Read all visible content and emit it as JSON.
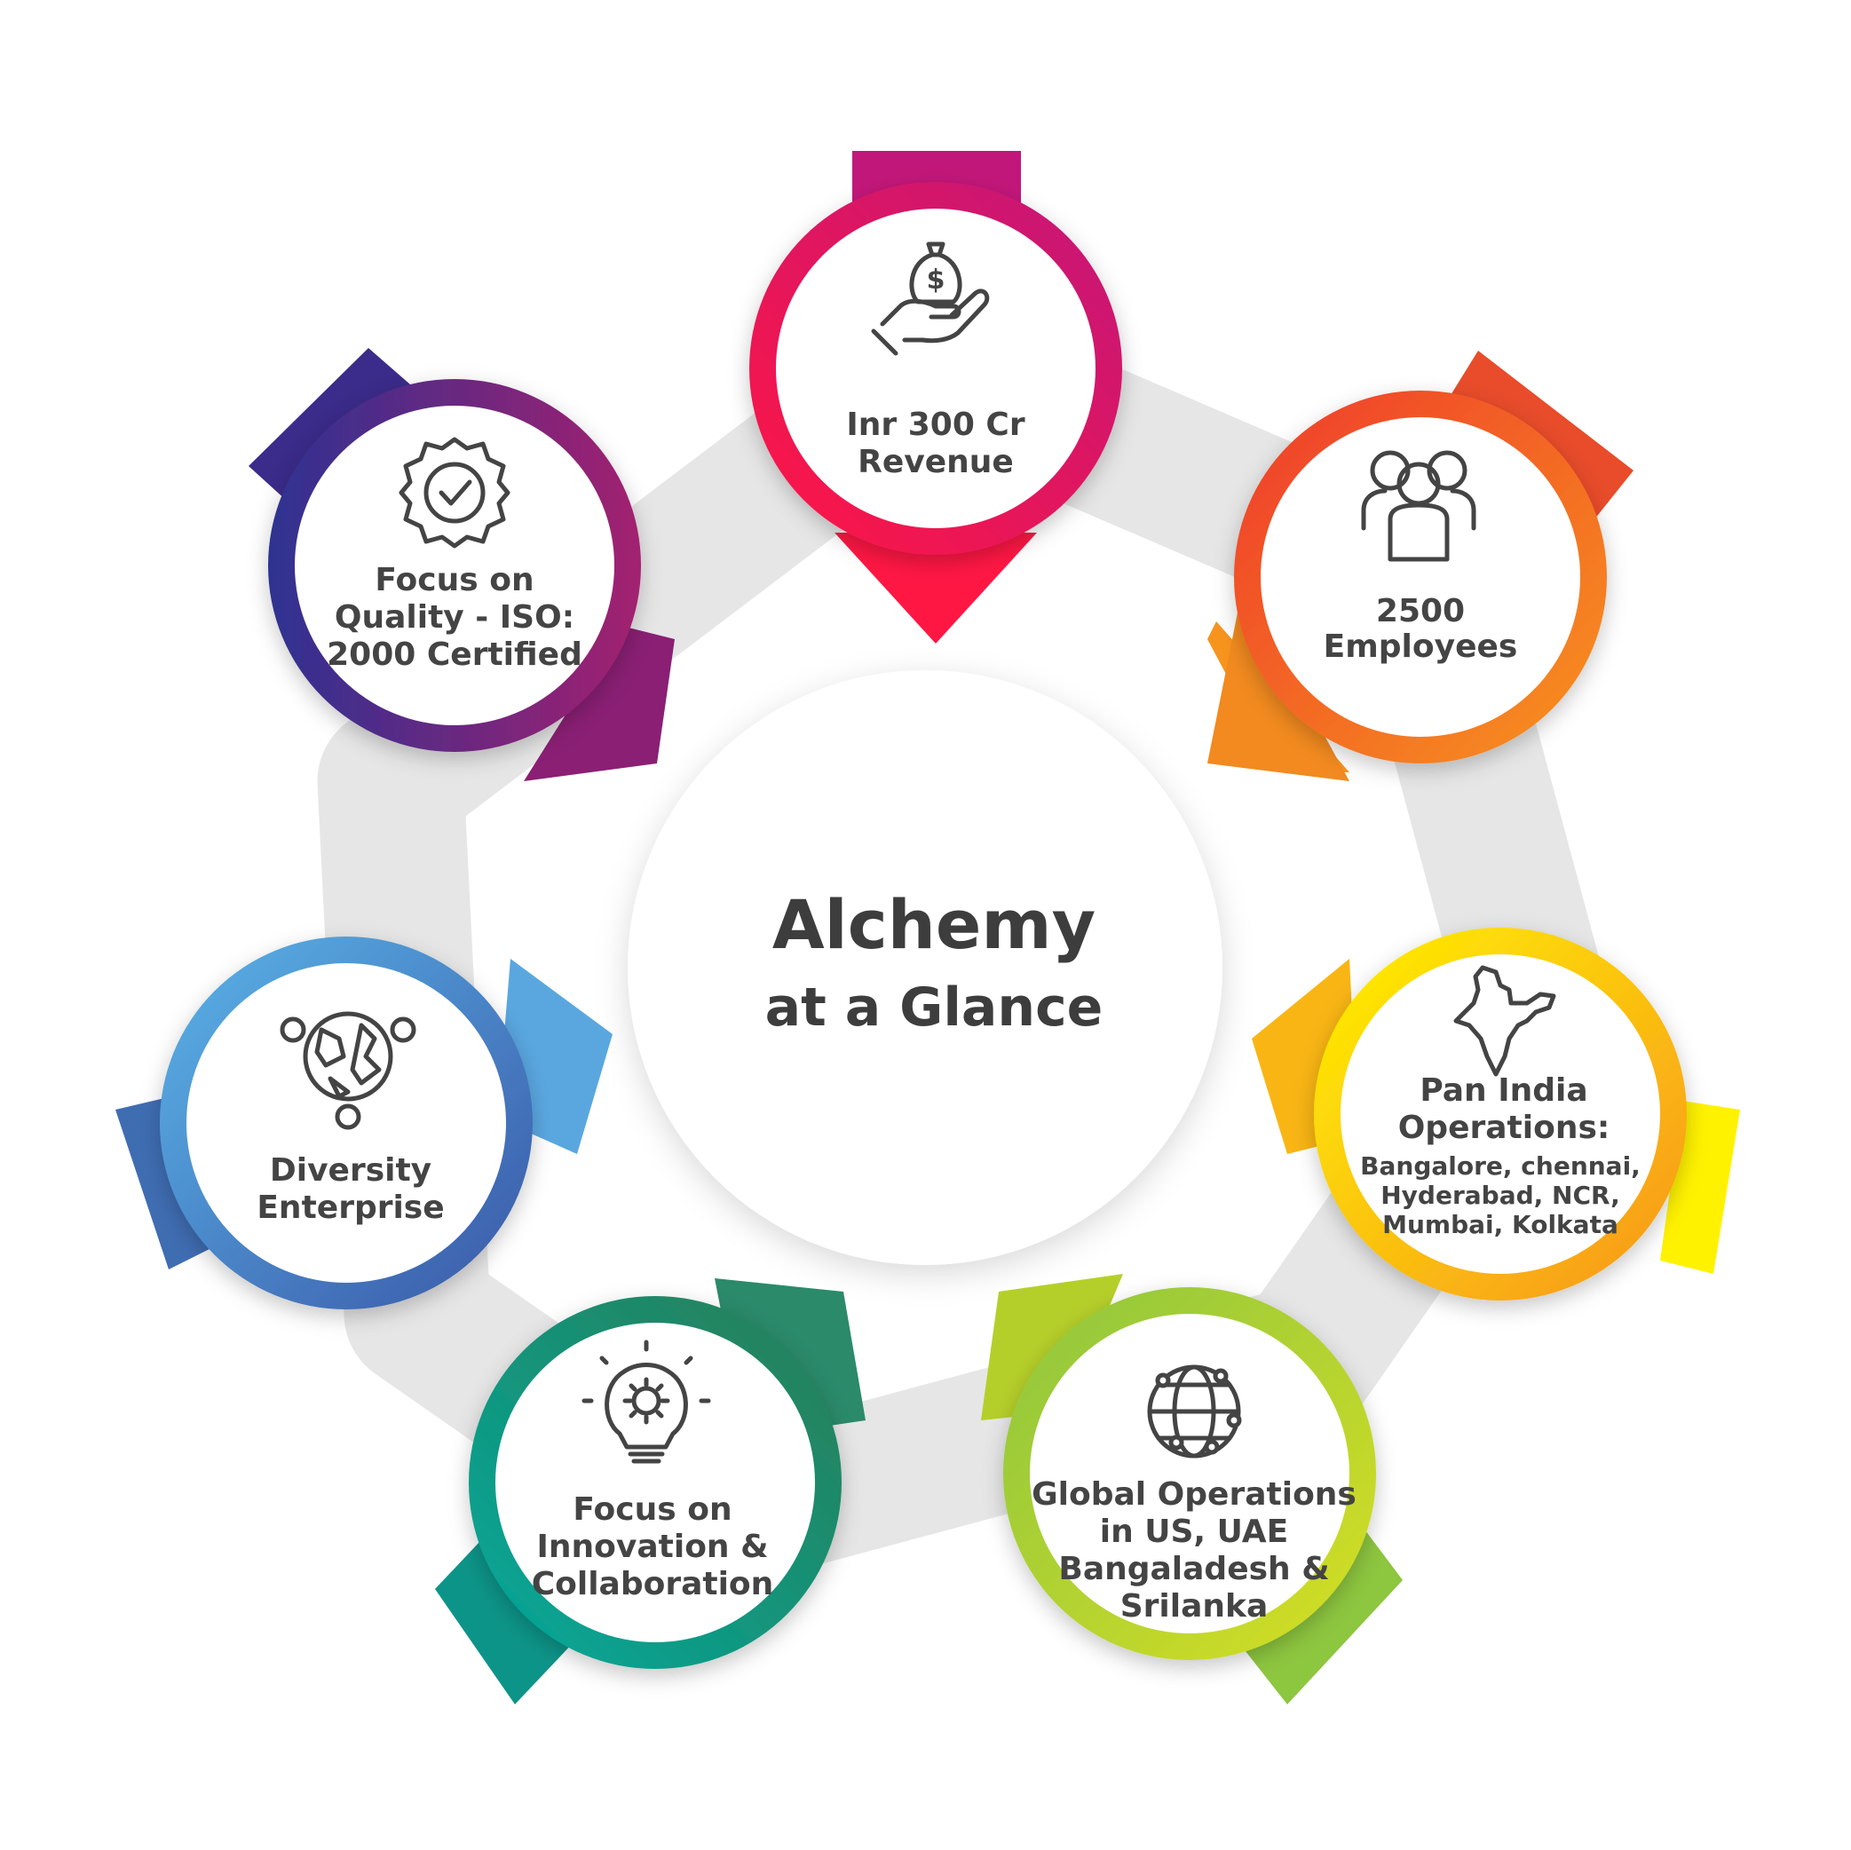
{
  "center": {
    "title_line1": "Alchemy",
    "title_line2": "at a Glance"
  },
  "nodes": [
    {
      "id": "revenue",
      "lines": [
        "Inr 300 Cr",
        "Revenue"
      ],
      "icon": "money-bag-hand-icon",
      "color_start": "#ff1744",
      "color_end": "#c2177a"
    },
    {
      "id": "employees",
      "lines": [
        "2500",
        "Employees"
      ],
      "icon": "people-group-icon",
      "color_start": "#ef3b2c",
      "color_end": "#f7941d"
    },
    {
      "id": "pan-india",
      "lines": [
        "Pan India",
        "Operations:"
      ],
      "sublines": [
        "Bangalore, chennai,",
        "Hyderabad, NCR,",
        "Mumbai, Kolkata"
      ],
      "icon": "india-map-icon",
      "color_start": "#fff200",
      "color_end": "#f7941d"
    },
    {
      "id": "global",
      "lines": [
        "Global Operations",
        "in US, UAE",
        "Bangaladesh &",
        "Srilanka"
      ],
      "icon": "globe-network-icon",
      "color_start": "#8dc63f",
      "color_end": "#d7df23"
    },
    {
      "id": "innovation",
      "lines": [
        "Focus on",
        "Innovation &",
        "Collaboration"
      ],
      "icon": "lightbulb-gear-icon",
      "color_start": "#00a99d",
      "color_end": "#2a7d55"
    },
    {
      "id": "diversity",
      "lines": [
        "Diversity",
        "Enterprise"
      ],
      "icon": "diversity-globe-icon",
      "color_start": "#5ab4e8",
      "color_end": "#3a57a7"
    },
    {
      "id": "quality",
      "lines": [
        "Focus on",
        "Quality - ISO:",
        "2000 Certified"
      ],
      "icon": "quality-badge-icon",
      "color_start": "#2e3192",
      "color_end": "#a3206f"
    }
  ],
  "colors": {
    "ring": "#e6e6e6",
    "text": "#444444",
    "center_text": "#3d3d3d"
  }
}
